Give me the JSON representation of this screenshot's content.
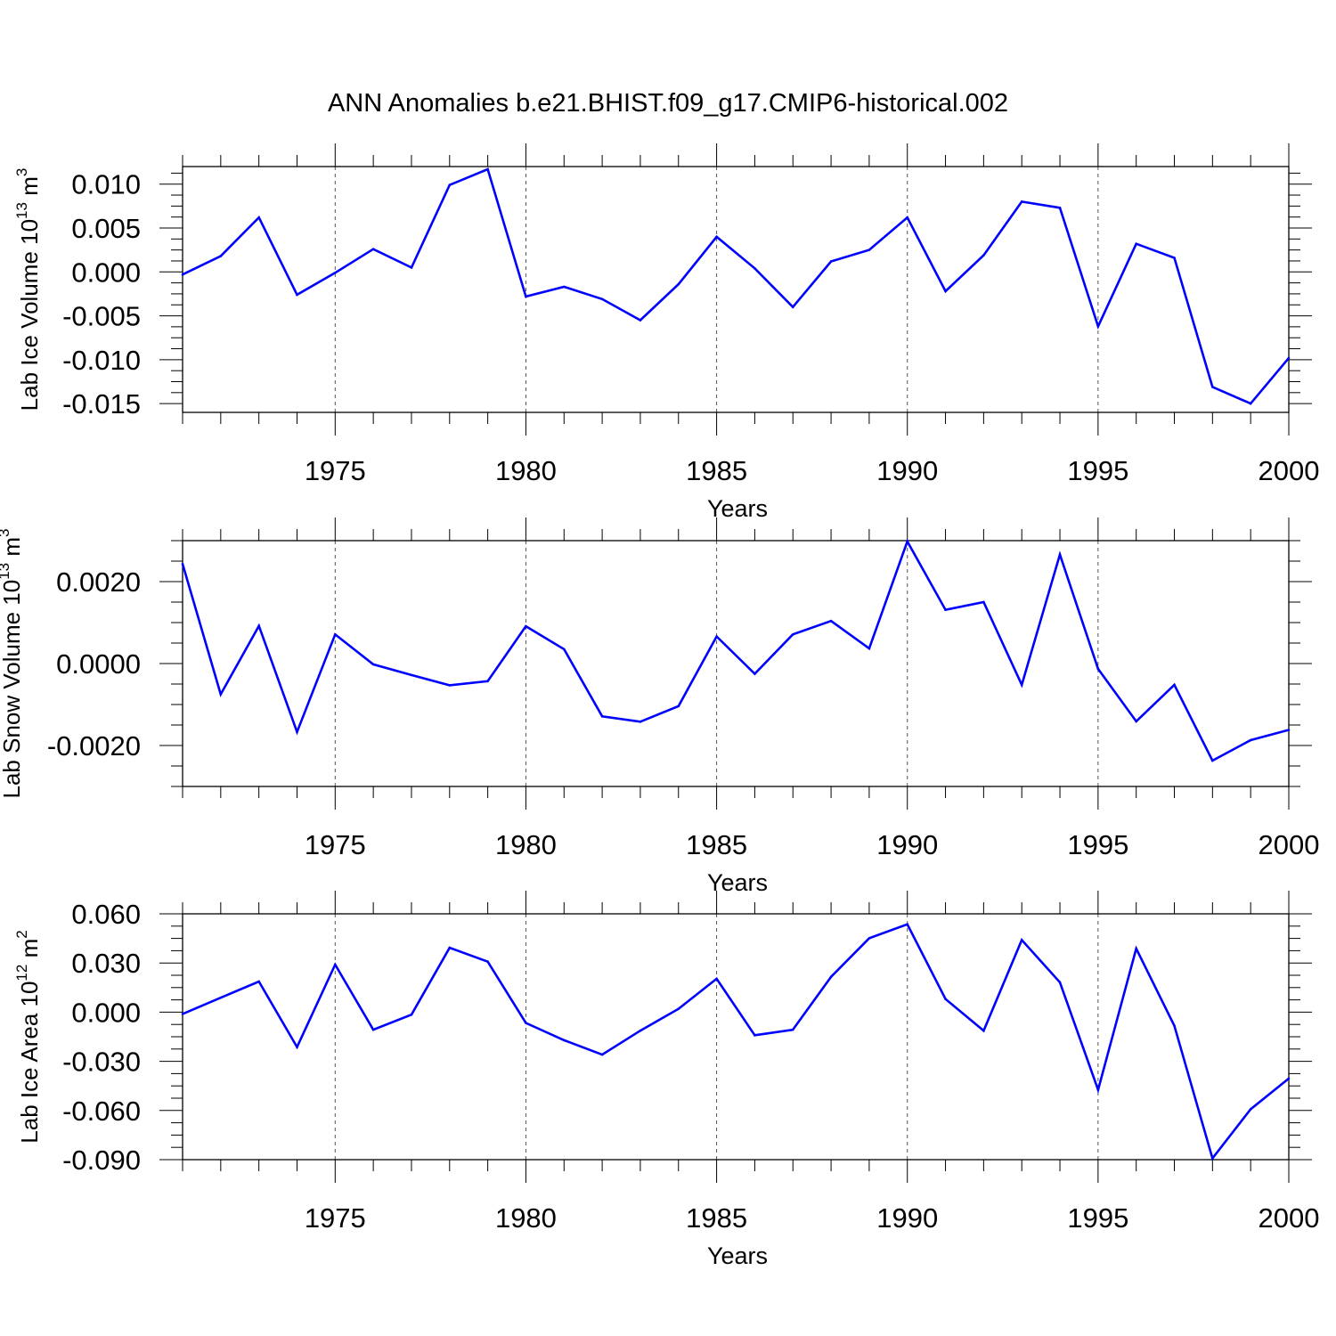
{
  "title": "ANN Anomalies b.e21.BHIST.f09_g17.CMIP6-historical.002",
  "colors": {
    "line": "#0000ff",
    "axis": "#000000",
    "grid": "#555555",
    "background": "#ffffff"
  },
  "chart_data": [
    {
      "type": "line",
      "ylabel": {
        "main": "Lab Ice Volume 10",
        "exponent": "13",
        "unit": " m",
        "unit_power": "3"
      },
      "xlabel": "Years",
      "xlim": [
        1971,
        2000
      ],
      "ylim": [
        -0.016,
        0.012
      ],
      "yticks": [
        0.01,
        0.005,
        0.0,
        -0.005,
        -0.01,
        -0.015
      ],
      "ytick_labels": [
        "0.010",
        "0.005",
        "0.000",
        "-0.005",
        "-0.010",
        "-0.015"
      ],
      "xticks": [
        1975,
        1980,
        1985,
        1990,
        1995,
        2000
      ],
      "xtick_labels": [
        "1975",
        "1980",
        "1985",
        "1990",
        "1995",
        "2000"
      ],
      "x": [
        1971,
        1972,
        1973,
        1974,
        1975,
        1976,
        1977,
        1978,
        1979,
        1980,
        1981,
        1982,
        1983,
        1984,
        1985,
        1986,
        1987,
        1988,
        1989,
        1990,
        1991,
        1992,
        1993,
        1994,
        1995,
        1996,
        1997,
        1998,
        1999,
        2000
      ],
      "y": [
        -0.0003,
        0.0018,
        0.0062,
        -0.0026,
        -0.0001,
        0.0026,
        0.0005,
        0.0099,
        0.0117,
        -0.0028,
        -0.0017,
        -0.0031,
        -0.0055,
        -0.0014,
        0.004,
        0.0004,
        -0.004,
        0.0012,
        0.0025,
        0.0062,
        -0.0022,
        0.0019,
        0.008,
        0.0073,
        -0.0062,
        0.0032,
        0.0016,
        -0.0131,
        -0.015,
        -0.0098
      ]
    },
    {
      "type": "line",
      "ylabel": {
        "main": "Lab Snow Volume 10",
        "exponent": "13",
        "unit": " m",
        "unit_power": "3"
      },
      "xlabel": "Years",
      "xlim": [
        1971,
        2000
      ],
      "ylim": [
        -0.003,
        0.003
      ],
      "yticks": [
        0.002,
        0.0,
        -0.002
      ],
      "ytick_labels": [
        "0.0020",
        "0.0000",
        "-0.0020"
      ],
      "xticks": [
        1975,
        1980,
        1985,
        1990,
        1995,
        2000
      ],
      "xtick_labels": [
        "1975",
        "1980",
        "1985",
        "1990",
        "1995",
        "2000"
      ],
      "x": [
        1971,
        1972,
        1973,
        1974,
        1975,
        1976,
        1977,
        1978,
        1979,
        1980,
        1981,
        1982,
        1983,
        1984,
        1985,
        1986,
        1987,
        1988,
        1989,
        1990,
        1991,
        1992,
        1993,
        1994,
        1995,
        1996,
        1997,
        1998,
        1999,
        2000
      ],
      "y": [
        0.00243,
        -0.00075,
        0.00092,
        -0.00167,
        0.00071,
        -2e-05,
        -0.00028,
        -0.00053,
        -0.00043,
        0.00091,
        0.00035,
        -0.00129,
        -0.00142,
        -0.00104,
        0.00066,
        -0.00025,
        0.00071,
        0.00104,
        0.00037,
        0.00298,
        0.00131,
        0.0015,
        -0.00052,
        0.00266,
        -0.00013,
        -0.00141,
        -0.00052,
        -0.00237,
        -0.00187,
        -0.00162
      ]
    },
    {
      "type": "line",
      "ylabel": {
        "main": "Lab Ice Area 10",
        "exponent": "12",
        "unit": " m",
        "unit_power": "2"
      },
      "xlabel": "Years",
      "xlim": [
        1971,
        2000
      ],
      "ylim": [
        -0.09,
        0.06
      ],
      "yticks": [
        0.06,
        0.03,
        0.0,
        -0.03,
        -0.06,
        -0.09
      ],
      "ytick_labels": [
        "0.060",
        "0.030",
        "0.000",
        "-0.030",
        "-0.060",
        "-0.090"
      ],
      "xticks": [
        1975,
        1980,
        1985,
        1990,
        1995,
        2000
      ],
      "xtick_labels": [
        "1975",
        "1980",
        "1985",
        "1990",
        "1995",
        "2000"
      ],
      "x": [
        1971,
        1972,
        1973,
        1974,
        1975,
        1976,
        1977,
        1978,
        1979,
        1980,
        1981,
        1982,
        1983,
        1984,
        1985,
        1986,
        1987,
        1988,
        1989,
        1990,
        1991,
        1992,
        1993,
        1994,
        1995,
        1996,
        1997,
        1998,
        1999,
        2000
      ],
      "y": [
        -0.0011,
        0.0088,
        0.0187,
        -0.0213,
        0.029,
        -0.0107,
        -0.0015,
        0.0393,
        0.0308,
        -0.0066,
        -0.0171,
        -0.0259,
        -0.0113,
        0.002,
        0.0204,
        -0.0141,
        -0.0107,
        0.0216,
        0.0451,
        0.0536,
        0.008,
        -0.0113,
        0.044,
        0.0182,
        -0.0474,
        0.0388,
        -0.0083,
        -0.0892,
        -0.0592,
        -0.0405
      ]
    }
  ]
}
